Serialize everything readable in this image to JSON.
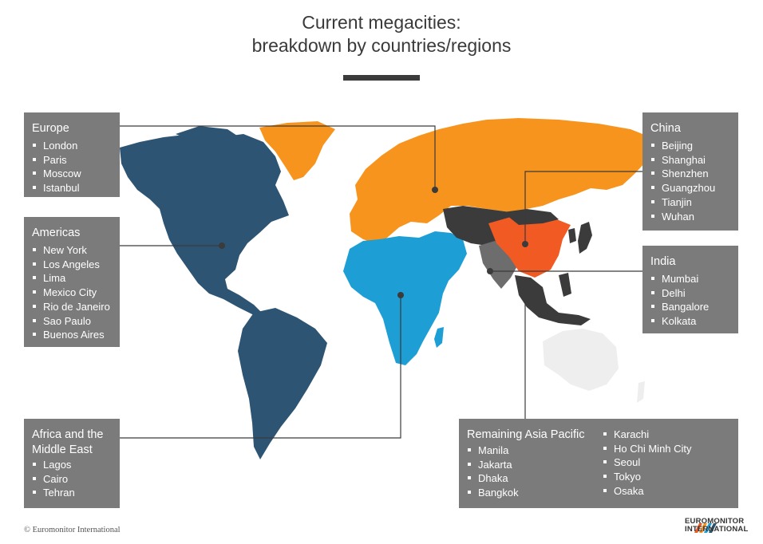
{
  "header": {
    "title_line1": "Current megacities:",
    "title_line2": "breakdown by countries/regions"
  },
  "colors": {
    "europe_region": "#f7941d",
    "americas_region": "#2d5573",
    "africa_middle_east_region": "#1d9fd6",
    "china_region": "#f15a22",
    "india_region": "#6d6d6d",
    "remaining_asia_pacific_region": "#3b3b3b",
    "oceania_region": "#eeeeee",
    "label_box": "#7b7b7b",
    "connector_line": "#3b3b3b"
  },
  "regions": {
    "europe": {
      "title": "Europe",
      "cities": [
        "London",
        "Paris",
        "Moscow",
        "Istanbul"
      ]
    },
    "americas": {
      "title": "Americas",
      "cities": [
        "New York",
        "Los Angeles",
        "Lima",
        "Mexico City",
        "Rio de Janeiro",
        "Sao Paulo",
        "Buenos Aires"
      ]
    },
    "africa": {
      "title_line1": "Africa and the",
      "title_line2": "Middle East",
      "cities": [
        "Lagos",
        "Cairo",
        "Tehran"
      ]
    },
    "china": {
      "title": "China",
      "cities": [
        "Beijing",
        "Shanghai",
        "Shenzhen",
        "Guangzhou",
        "Tianjin",
        "Wuhan"
      ]
    },
    "india": {
      "title": "India",
      "cities": [
        "Mumbai",
        "Delhi",
        "Bangalore",
        "Kolkata"
      ]
    },
    "asia_pacific": {
      "title": "Remaining Asia Pacific",
      "cities_col1": [
        "Manila",
        "Jakarta",
        "Dhaka",
        "Bangkok"
      ],
      "cities_col2": [
        "Karachi",
        "Ho Chi Minh City",
        "Seoul",
        "Tokyo",
        "Osaka"
      ]
    }
  },
  "footer": {
    "copyright": "© Euromonitor International",
    "logo_line1": "EUROMONITOR",
    "logo_line2": "INTERNATIONAL"
  }
}
